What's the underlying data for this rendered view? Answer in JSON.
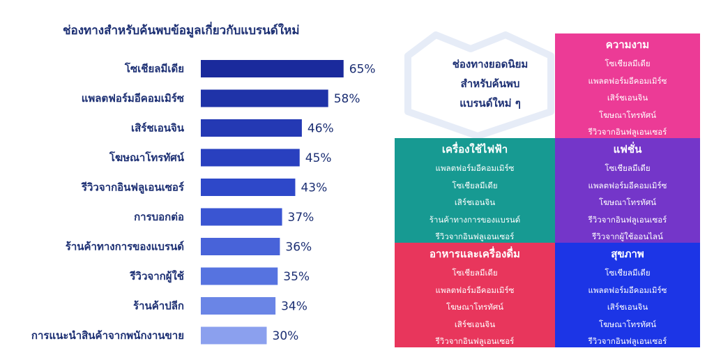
{
  "chart_data": {
    "type": "bar",
    "orientation": "horizontal",
    "title": "ช่องทางสำหรับค้นพบข้อมูลเกี่ยวกับแบรนด์ใหม่",
    "categories": [
      "โซเชียลมีเดีย",
      "แพลตฟอร์มอีคอมเมิร์ซ",
      "เสิร์ชเอนจิน",
      "โฆษณาโทรทัศน์",
      "รีวิวจากอินฟลูเอนเซอร์",
      "การบอกต่อ",
      "ร้านค้าทางการของแบรนด์",
      "รีวิวจากผู้ใช้",
      "ร้านค้าปลีก",
      "การแนะนำสินค้าจากพนักงานขาย"
    ],
    "values": [
      65,
      58,
      46,
      45,
      43,
      37,
      36,
      35,
      34,
      30
    ],
    "value_labels": [
      "65%",
      "58%",
      "46%",
      "45%",
      "43%",
      "37%",
      "36%",
      "35%",
      "34%",
      "30%"
    ],
    "bar_colors": [
      "#1a2a9c",
      "#1f33a8",
      "#2439b4",
      "#2940bf",
      "#2e48c9",
      "#3a55d2",
      "#4863d9",
      "#5673e0",
      "#6a85e6",
      "#8ba0ee"
    ],
    "xlim": [
      0,
      100
    ]
  },
  "panel": {
    "heading_lines": [
      "ช่องทางยอดนิยม",
      "สำหรับค้นพบ",
      "แบรนด์ใหม่ ๆ"
    ],
    "tiles": [
      {
        "title": "ความงาม",
        "color": "#ec3b96",
        "items": [
          "โซเชียลมีเดีย",
          "แพลตฟอร์มอีคอมเมิร์ซ",
          "เสิร์ชเอนจิน",
          "โฆษณาโทรทัศน์",
          "รีวิวจากอินฟลูเอนเซอร์"
        ]
      },
      {
        "title": "เครื่องใช้ไฟฟ้า",
        "color": "#179a92",
        "items": [
          "แพลตฟอร์มอีคอมเมิร์ซ",
          "โซเชียลมีเดีย",
          "เสิร์ชเอนจิน",
          "ร้านค้าทางการของแบรนด์",
          "รีวิวจากอินฟลูเอนเซอร์"
        ]
      },
      {
        "title": "แฟชั่น",
        "color": "#7436c9",
        "items": [
          "โซเชียลมีเดีย",
          "แพลตฟอร์มอีคอมเมิร์ซ",
          "โฆษณาโทรทัศน์",
          "รีวิวจากอินฟลูเอนเซอร์",
          "รีวิวจากผู้ใช้ออนไลน์"
        ]
      },
      {
        "title": "อาหารและเครื่องดื่ม",
        "color": "#e8365c",
        "items": [
          "โซเชียลมีเดีย",
          "แพลตฟอร์มอีคอมเมิร์ซ",
          "โฆษณาโทรทัศน์",
          "เสิร์ชเอนจิน",
          "รีวิวจากอินฟลูเอนเซอร์"
        ]
      },
      {
        "title": "สุขภาพ",
        "color": "#1c35e6",
        "items": [
          "โซเชียลมีเดีย",
          "แพลตฟอร์มอีคอมเมิร์ซ",
          "เสิร์ชเอนจิน",
          "โฆษณาโทรทัศน์",
          "รีวิวจากอินฟลูเอนเซอร์"
        ]
      }
    ]
  }
}
